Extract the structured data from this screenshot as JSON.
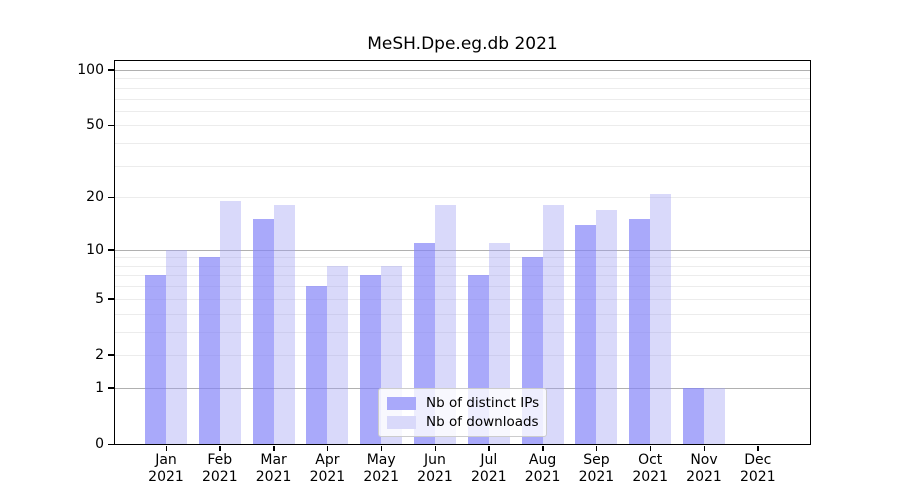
{
  "title": "MeSH.Dpe.eg.db 2021",
  "chart_data": {
    "type": "bar",
    "title": "MeSH.Dpe.eg.db 2021",
    "categories": [
      "Jan",
      "Feb",
      "Mar",
      "Apr",
      "May",
      "Jun",
      "Jul",
      "Aug",
      "Sep",
      "Oct",
      "Nov",
      "Dec"
    ],
    "year": "2021",
    "series": [
      {
        "name": "Nb of distinct IPs",
        "key": "distinct-ips",
        "values": [
          7,
          9,
          15,
          6,
          7,
          11,
          7,
          9,
          14,
          15,
          1,
          0
        ],
        "color": "#a9a9fa",
        "fill": "rgba(132,132,248,0.7)"
      },
      {
        "name": "Nb of downloads",
        "key": "downloads",
        "values": [
          10,
          19,
          18,
          8,
          8,
          18,
          11,
          18,
          17,
          21,
          1,
          0
        ],
        "color": "#d9d9fa",
        "fill": "rgba(161,161,243,0.4)"
      }
    ],
    "xlabel": "",
    "ylabel": "",
    "ylim": [
      0,
      100
    ],
    "y_scale": "log1p",
    "y_ticks": [
      0,
      1,
      2,
      5,
      10,
      20,
      50,
      100
    ],
    "major_gridlines": [
      1,
      10,
      100
    ],
    "minor_gridlines": [
      2,
      3,
      4,
      5,
      6,
      7,
      8,
      9,
      20,
      30,
      40,
      50,
      60,
      70,
      80,
      90
    ],
    "grid": true,
    "legend_position": "lower center"
  },
  "colors": {
    "major_grid": "#b0b0b0",
    "minor_grid": "#ececec",
    "spine": "#000000",
    "background": "#ffffff"
  }
}
